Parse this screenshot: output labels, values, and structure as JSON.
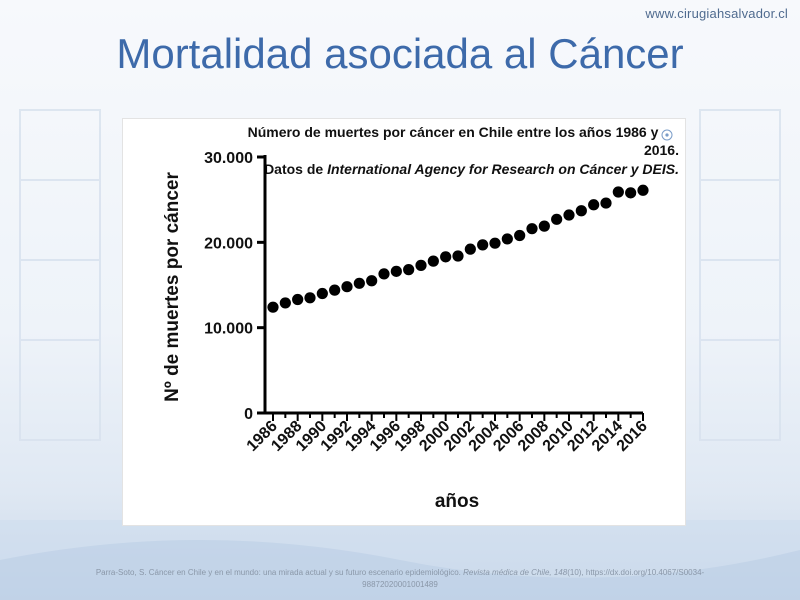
{
  "header": {
    "site_url": "www.cirugiahsalvador.cl",
    "title": "Mortalidad asociada al Cáncer"
  },
  "caption": {
    "authors": "Parra-Soto, S. Cáncer en Chile y en el mundo: una mirada actual y su futuro escenario epidemiológico.",
    "journal": "Revista médica de Chile, 148",
    "issue": "(10), https://dx.doi.org/10.4067/S0034-98872020001001489"
  },
  "colors": {
    "title": "#3d6aaa",
    "points": "#000000",
    "background": "#eef3f9"
  },
  "chart_data": {
    "type": "scatter",
    "title_lines": [
      "Número de muertes por cáncer en Chile entre los años 1986 y",
      "2016."
    ],
    "subtitle_prefix": "Datos de ",
    "subtitle_italic": "International Agency for Research on Cáncer y DEIS.",
    "xlabel": "años",
    "ylabel": "Nº de muertes por cáncer",
    "ylim": [
      0,
      30000
    ],
    "yticks": [
      0,
      10000,
      20000,
      30000
    ],
    "ytick_labels": [
      "0",
      "10.000",
      "20.000",
      "30.000"
    ],
    "xlim": [
      1986,
      2016
    ],
    "xticks": [
      1986,
      1988,
      1990,
      1992,
      1994,
      1996,
      1998,
      2000,
      2002,
      2004,
      2006,
      2008,
      2010,
      2012,
      2014,
      2016
    ],
    "x": [
      1986,
      1987,
      1988,
      1989,
      1990,
      1991,
      1992,
      1993,
      1994,
      1995,
      1996,
      1997,
      1998,
      1999,
      2000,
      2001,
      2002,
      2003,
      2004,
      2005,
      2006,
      2007,
      2008,
      2009,
      2010,
      2011,
      2012,
      2013,
      2014,
      2015,
      2016
    ],
    "y": [
      12400,
      12900,
      13300,
      13500,
      14000,
      14400,
      14800,
      15200,
      15500,
      16300,
      16600,
      16800,
      17300,
      17800,
      18300,
      18400,
      19200,
      19700,
      19900,
      20400,
      20800,
      21600,
      21900,
      22700,
      23200,
      23700,
      24400,
      24600,
      25900,
      25800,
      26100
    ],
    "grid": false,
    "legend": false
  }
}
